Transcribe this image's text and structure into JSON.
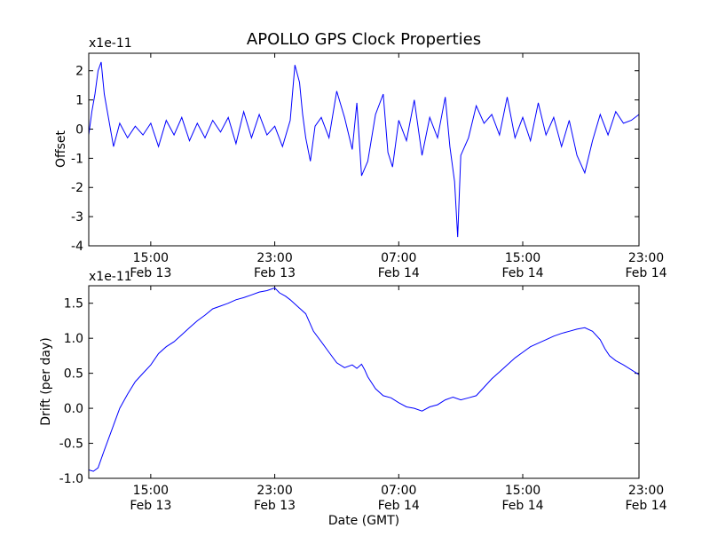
{
  "figure_title": "APOLLO GPS Clock Properties",
  "colors": {
    "series": "#0000ff",
    "axes": "#000000",
    "background": "#ffffff"
  },
  "chart_data": [
    {
      "type": "line",
      "title": "APOLLO GPS Clock Properties",
      "ylabel": "Offset",
      "xlabel": "",
      "multiplier": "x1e-11",
      "ylim": [
        -4,
        2.6
      ],
      "xlim": [
        11.0,
        46.5
      ],
      "yticks": [
        {
          "v": 2,
          "label": "2"
        },
        {
          "v": 1,
          "label": "1"
        },
        {
          "v": 0,
          "label": "0"
        },
        {
          "v": -1,
          "label": "-1"
        },
        {
          "v": -2,
          "label": "-2"
        },
        {
          "v": -3,
          "label": "-3"
        },
        {
          "v": -4,
          "label": "-4"
        }
      ],
      "xticks": [
        {
          "v": 15,
          "time": "15:00",
          "date": "Feb 13"
        },
        {
          "v": 23,
          "time": "23:00",
          "date": "Feb 13"
        },
        {
          "v": 31,
          "time": "07:00",
          "date": "Feb 14"
        },
        {
          "v": 39,
          "time": "15:00",
          "date": "Feb 14"
        },
        {
          "v": 47,
          "time": "23:00",
          "date": "Feb 14"
        }
      ],
      "x_unit": "hours since Feb 13 00:00 GMT",
      "series": [
        {
          "name": "Offset",
          "x": [
            11.0,
            11.2,
            11.4,
            11.6,
            11.8,
            12.0,
            12.3,
            12.6,
            13.0,
            13.5,
            14.0,
            14.5,
            15.0,
            15.5,
            16.0,
            16.5,
            17.0,
            17.5,
            18.0,
            18.5,
            19.0,
            19.5,
            20.0,
            20.5,
            21.0,
            21.5,
            22.0,
            22.5,
            23.0,
            23.5,
            24.0,
            24.3,
            24.6,
            24.8,
            25.0,
            25.3,
            25.6,
            26.0,
            26.5,
            27.0,
            27.5,
            28.0,
            28.3,
            28.6,
            29.0,
            29.5,
            30.0,
            30.3,
            30.6,
            31.0,
            31.5,
            32.0,
            32.5,
            33.0,
            33.5,
            34.0,
            34.3,
            34.6,
            34.8,
            35.0,
            35.5,
            36.0,
            36.5,
            37.0,
            37.5,
            38.0,
            38.5,
            39.0,
            39.5,
            40.0,
            40.5,
            41.0,
            41.5,
            42.0,
            42.5,
            43.0,
            43.5,
            44.0,
            44.5,
            45.0,
            45.5,
            46.0,
            46.5
          ],
          "y": [
            -0.2,
            0.6,
            1.2,
            2.0,
            2.3,
            1.2,
            0.3,
            -0.6,
            0.2,
            -0.3,
            0.1,
            -0.2,
            0.2,
            -0.6,
            0.3,
            -0.2,
            0.4,
            -0.4,
            0.2,
            -0.3,
            0.3,
            -0.1,
            0.4,
            -0.5,
            0.6,
            -0.3,
            0.5,
            -0.2,
            0.1,
            -0.6,
            0.3,
            2.2,
            1.6,
            0.5,
            -0.3,
            -1.1,
            0.1,
            0.4,
            -0.3,
            1.3,
            0.4,
            -0.7,
            0.9,
            -1.6,
            -1.1,
            0.5,
            1.2,
            -0.8,
            -1.3,
            0.3,
            -0.4,
            1.0,
            -0.9,
            0.4,
            -0.3,
            1.1,
            -0.6,
            -1.8,
            -3.7,
            -0.9,
            -0.3,
            0.8,
            0.2,
            0.5,
            -0.2,
            1.1,
            -0.3,
            0.4,
            -0.4,
            0.9,
            -0.2,
            0.4,
            -0.6,
            0.3,
            -0.9,
            -1.5,
            -0.4,
            0.5,
            -0.2,
            0.6,
            0.2,
            0.3,
            0.5
          ]
        }
      ]
    },
    {
      "type": "line",
      "title": "",
      "ylabel": "Drift (per day)",
      "xlabel": "Date (GMT)",
      "multiplier": "x1e-11",
      "ylim": [
        -1.0,
        1.75
      ],
      "xlim": [
        11.0,
        46.5
      ],
      "yticks": [
        {
          "v": 1.5,
          "label": "1.5"
        },
        {
          "v": 1.0,
          "label": "1.0"
        },
        {
          "v": 0.5,
          "label": "0.5"
        },
        {
          "v": 0.0,
          "label": "0.0"
        },
        {
          "v": -0.5,
          "label": "-0.5"
        },
        {
          "v": -1.0,
          "label": "-1.0"
        }
      ],
      "xticks": [
        {
          "v": 15,
          "time": "15:00",
          "date": "Feb 13"
        },
        {
          "v": 23,
          "time": "23:00",
          "date": "Feb 13"
        },
        {
          "v": 31,
          "time": "07:00",
          "date": "Feb 14"
        },
        {
          "v": 39,
          "time": "15:00",
          "date": "Feb 14"
        },
        {
          "v": 47,
          "time": "23:00",
          "date": "Feb 14"
        }
      ],
      "x_unit": "hours since Feb 13 00:00 GMT",
      "series": [
        {
          "name": "Drift",
          "x": [
            11.0,
            11.3,
            11.6,
            12.0,
            12.5,
            13.0,
            13.5,
            14.0,
            14.5,
            15.0,
            15.5,
            16.0,
            16.5,
            17.0,
            17.5,
            18.0,
            18.5,
            19.0,
            19.5,
            20.0,
            20.5,
            21.0,
            21.5,
            22.0,
            22.5,
            23.0,
            23.3,
            23.7,
            24.0,
            24.5,
            25.0,
            25.5,
            26.0,
            26.5,
            27.0,
            27.5,
            28.0,
            28.3,
            28.6,
            28.8,
            29.0,
            29.5,
            30.0,
            30.5,
            31.0,
            31.5,
            32.0,
            32.5,
            33.0,
            33.5,
            34.0,
            34.5,
            35.0,
            35.5,
            36.0,
            36.5,
            37.0,
            37.5,
            38.0,
            38.5,
            39.0,
            39.5,
            40.0,
            40.5,
            41.0,
            41.5,
            42.0,
            42.5,
            43.0,
            43.5,
            44.0,
            44.3,
            44.6,
            45.0,
            45.5,
            46.0,
            46.5
          ],
          "y": [
            -0.88,
            -0.9,
            -0.85,
            -0.6,
            -0.3,
            0.0,
            0.2,
            0.38,
            0.5,
            0.62,
            0.78,
            0.88,
            0.95,
            1.05,
            1.15,
            1.25,
            1.33,
            1.42,
            1.46,
            1.5,
            1.55,
            1.58,
            1.62,
            1.66,
            1.68,
            1.72,
            1.65,
            1.6,
            1.55,
            1.45,
            1.35,
            1.1,
            0.95,
            0.8,
            0.65,
            0.58,
            0.62,
            0.57,
            0.63,
            0.55,
            0.45,
            0.28,
            0.18,
            0.15,
            0.08,
            0.02,
            0.0,
            -0.04,
            0.02,
            0.05,
            0.12,
            0.16,
            0.12,
            0.15,
            0.18,
            0.3,
            0.42,
            0.52,
            0.62,
            0.72,
            0.8,
            0.88,
            0.93,
            0.98,
            1.03,
            1.07,
            1.1,
            1.13,
            1.15,
            1.1,
            0.98,
            0.85,
            0.75,
            0.68,
            0.62,
            0.55,
            0.48
          ]
        }
      ]
    }
  ]
}
